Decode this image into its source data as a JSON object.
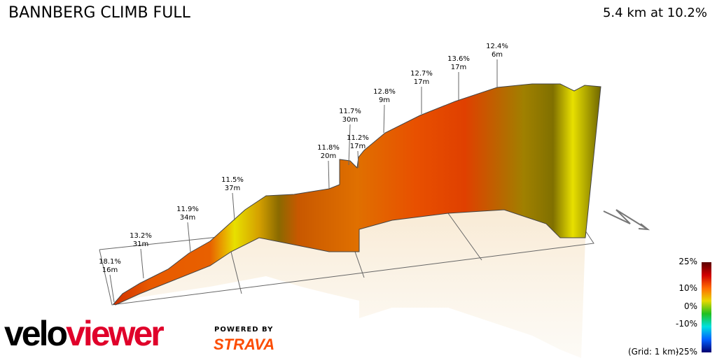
{
  "header": {
    "title": "BANNBERG CLIMB FULL",
    "summary": "5.4 km at 10.2%"
  },
  "chart_data": {
    "type": "3d-elevation-profile",
    "annotations": [
      {
        "gradient": "18.1%",
        "gain": "16m"
      },
      {
        "gradient": "13.2%",
        "gain": "31m"
      },
      {
        "gradient": "11.9%",
        "gain": "34m"
      },
      {
        "gradient": "11.5%",
        "gain": "37m"
      },
      {
        "gradient": "11.8%",
        "gain": "20m"
      },
      {
        "gradient": "11.7%",
        "gain": "30m"
      },
      {
        "gradient": "11.2%",
        "gain": "17m"
      },
      {
        "gradient": "12.8%",
        "gain": "9m"
      },
      {
        "gradient": "12.7%",
        "gain": "17m"
      },
      {
        "gradient": "13.6%",
        "gain": "17m"
      },
      {
        "gradient": "12.4%",
        "gain": "6m"
      }
    ],
    "legend": {
      "ticks": [
        "25%",
        "10%",
        "0%",
        "-10%",
        "-25%"
      ],
      "grid_label": "(Grid: 1 km)",
      "colors": [
        "#5a0000",
        "#d00000",
        "#ff6a00",
        "#e8d800",
        "#20c020",
        "#00e0e0",
        "#0060ff",
        "#000070"
      ]
    }
  },
  "branding": {
    "logo_a": "velo",
    "logo_b": "viewer",
    "powered": "POWERED BY",
    "strava": "STRAVA"
  },
  "colors": {
    "velo": "#000000",
    "viewer": "#e0002a",
    "strava": "#fc4c02"
  }
}
